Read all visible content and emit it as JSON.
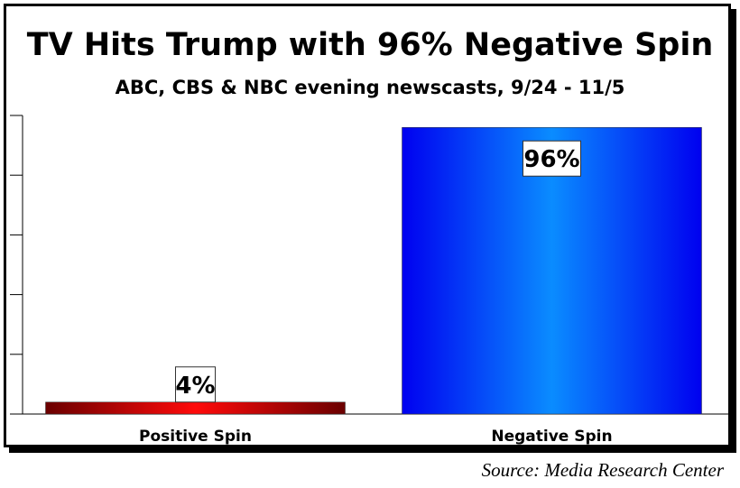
{
  "chart_data": {
    "type": "bar",
    "title": "TV Hits Trump with 96% Negative Spin",
    "subtitle": "ABC, CBS & NBC evening newscasts, 9/24 - 11/5",
    "categories": [
      "Positive Spin",
      "Negative Spin"
    ],
    "values": [
      4,
      96
    ],
    "data_labels": [
      "4%",
      "96%"
    ],
    "colors": [
      "#e00000",
      "#0050ff"
    ],
    "ylim": [
      0,
      100
    ],
    "ytick_step": 20,
    "ytick_labels_shown": false,
    "grid": false,
    "source": "Source: Media Research Center"
  }
}
